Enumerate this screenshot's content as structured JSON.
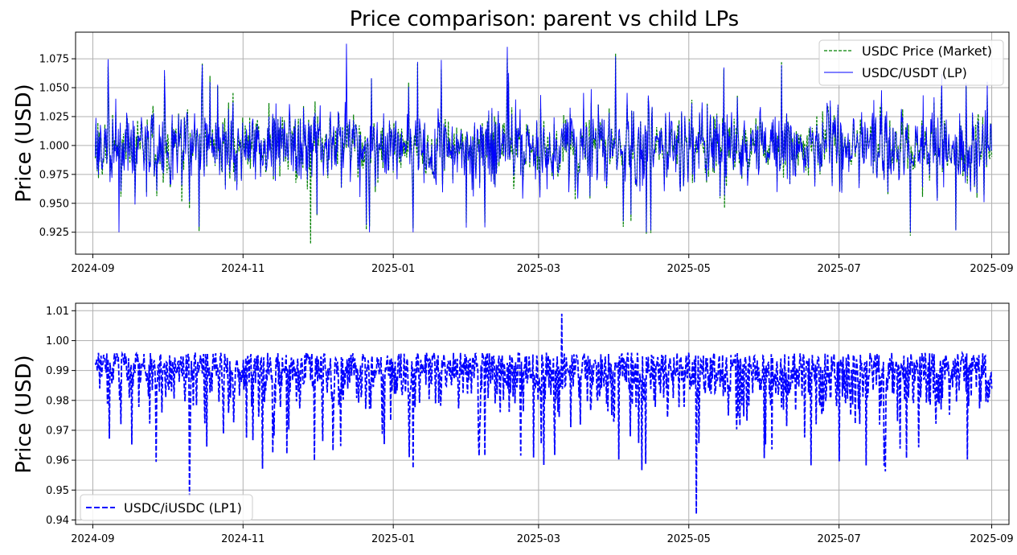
{
  "chart_data": [
    {
      "type": "line",
      "title": "Price comparison: parent vs child LPs",
      "xlabel": "",
      "ylabel": "Price (USD)",
      "xlim": [
        "2024-08-25",
        "2025-09-08"
      ],
      "ylim": [
        0.906,
        1.098
      ],
      "grid": true,
      "legend_position": "top-right",
      "x_ticks": [
        "2024-09",
        "2024-11",
        "2025-01",
        "2025-03",
        "2025-05",
        "2025-07",
        "2025-09"
      ],
      "y_ticks": [
        0.925,
        0.95,
        0.975,
        1.0,
        1.025,
        1.05,
        1.075
      ],
      "y_tick_labels": [
        "0.925",
        "0.950",
        "0.975",
        "1.000",
        "1.025",
        "1.050",
        "1.075"
      ],
      "x_range": [
        "2024-09-02",
        "2025-09-01"
      ],
      "series": [
        {
          "name": "USDC Price (Market)",
          "style": "dashed",
          "color": "#008000",
          "mean": 1.0,
          "typical_range": [
            0.96,
            1.04
          ],
          "extremes": {
            "max": 1.087,
            "min": 0.915
          }
        },
        {
          "name": "USDC/USDT (LP)",
          "style": "solid",
          "color": "#0000ff",
          "mean": 1.0,
          "typical_range": [
            0.96,
            1.04
          ],
          "extremes": {
            "max": 1.088,
            "min": 0.925
          }
        }
      ]
    },
    {
      "type": "line",
      "title": "",
      "xlabel": "",
      "ylabel": "Price (USD)",
      "xlim": [
        "2024-08-25",
        "2025-09-08"
      ],
      "ylim": [
        0.9385,
        1.0125
      ],
      "grid": true,
      "legend_position": "bottom-left",
      "x_ticks": [
        "2024-09",
        "2024-11",
        "2025-01",
        "2025-03",
        "2025-05",
        "2025-07",
        "2025-09"
      ],
      "y_ticks": [
        0.94,
        0.95,
        0.96,
        0.97,
        0.98,
        0.99,
        1.0,
        1.01
      ],
      "y_tick_labels": [
        "0.94",
        "0.95",
        "0.96",
        "0.97",
        "0.98",
        "0.99",
        "1.00",
        "1.01"
      ],
      "x_range": [
        "2024-09-02",
        "2025-09-01"
      ],
      "series": [
        {
          "name": "USDC/iUSDC (LP1)",
          "style": "dashed",
          "color": "#0000ff",
          "typical_range": [
            0.975,
            1.003
          ],
          "extremes": {
            "max": 1.009,
            "min": 0.942
          }
        }
      ]
    }
  ]
}
